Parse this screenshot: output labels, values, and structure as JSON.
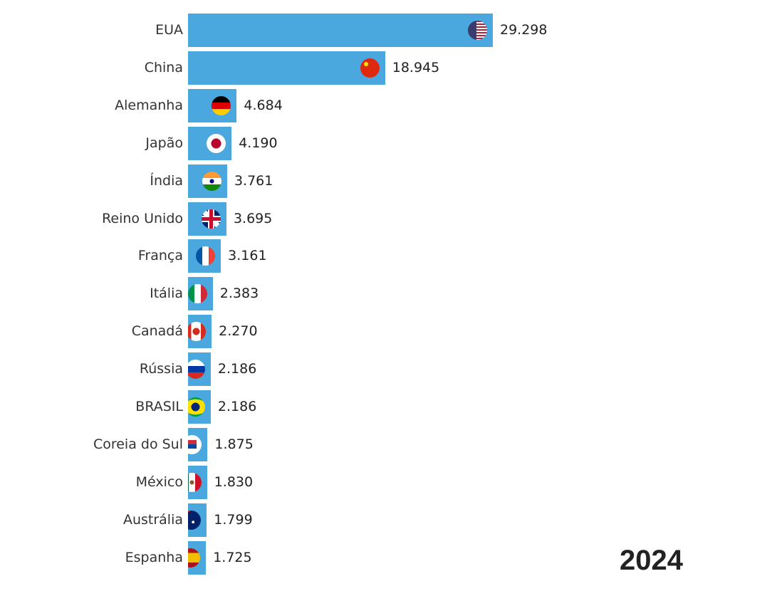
{
  "chart_data": {
    "type": "bar",
    "orientation": "horizontal",
    "categories": [
      "EUA",
      "China",
      "Alemanha",
      "Japão",
      "Índia",
      "Reino Unido",
      "França",
      "Itália",
      "Canadá",
      "Rússia",
      "BRASIL",
      "Coreia do Sul",
      "México",
      "Austrália",
      "Espanha"
    ],
    "values": [
      29.298,
      18.945,
      4.684,
      4.19,
      3.761,
      3.695,
      3.161,
      2.383,
      2.27,
      2.186,
      2.186,
      1.875,
      1.83,
      1.799,
      1.725
    ],
    "value_labels": [
      "29.298",
      "18.945",
      "4.684",
      "4.190",
      "3.761",
      "3.695",
      "3.161",
      "2.383",
      "2.270",
      "2.186",
      "2.186",
      "1.875",
      "1.830",
      "1.799",
      "1.725"
    ],
    "flags": [
      "usa-flag-icon",
      "china-flag-icon",
      "germany-flag-icon",
      "japan-flag-icon",
      "india-flag-icon",
      "uk-flag-icon",
      "france-flag-icon",
      "italy-flag-icon",
      "canada-flag-icon",
      "russia-flag-icon",
      "brazil-flag-icon",
      "south-korea-flag-icon",
      "mexico-flag-icon",
      "australia-flag-icon",
      "spain-flag-icon"
    ],
    "bar_color": "#4aa8df",
    "xlim": [
      0,
      29.298
    ],
    "grid": false,
    "year": "2024"
  }
}
